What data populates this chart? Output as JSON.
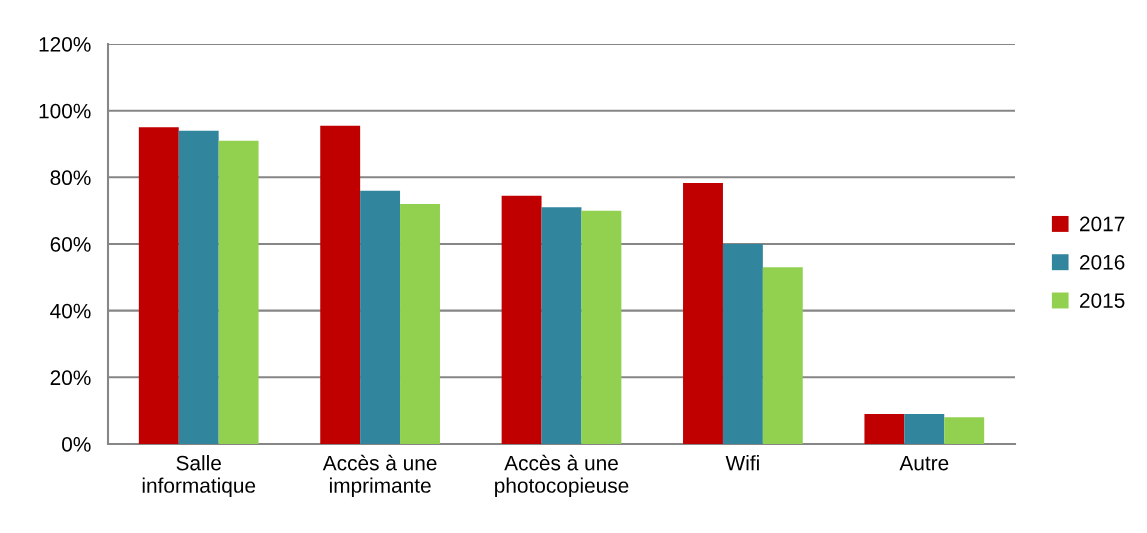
{
  "chart_data": {
    "type": "bar",
    "categories": [
      "Salle\ninformatique",
      "Accès à une\nimprimante",
      "Accès à une\nphotocopieuse",
      "Wifi",
      "Autre"
    ],
    "series": [
      {
        "name": "2017",
        "color": "#c00000",
        "values": [
          95,
          95.5,
          74.5,
          78.3,
          9
        ]
      },
      {
        "name": "2016",
        "color": "#31859c",
        "values": [
          94,
          76,
          71,
          60,
          9
        ]
      },
      {
        "name": "2015",
        "color": "#92d050",
        "values": [
          91,
          72,
          70,
          53,
          8
        ]
      }
    ],
    "ylim": [
      0,
      120
    ],
    "yticks": [
      {
        "value": 0,
        "label": "0%"
      },
      {
        "value": 20,
        "label": "20%"
      },
      {
        "value": 40,
        "label": "40%"
      },
      {
        "value": 60,
        "label": "60%"
      },
      {
        "value": 80,
        "label": "80%"
      },
      {
        "value": 100,
        "label": "100%"
      },
      {
        "value": 120,
        "label": "120%"
      }
    ],
    "grid": "y",
    "legend": "right"
  }
}
